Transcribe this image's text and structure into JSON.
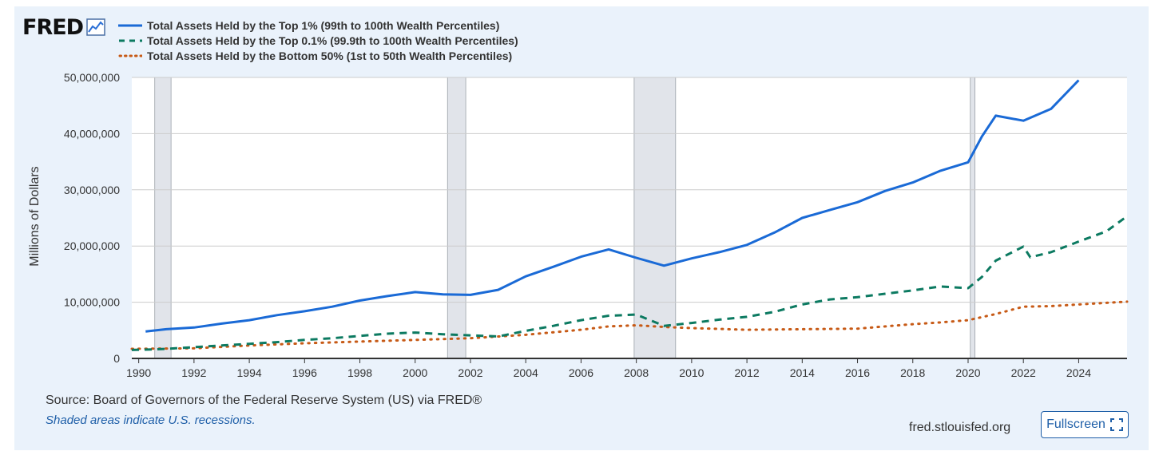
{
  "branding": {
    "logo_text": "FRED",
    "logo_icon": "line-chart-icon"
  },
  "footer": {
    "source": "Source: Board of Governors of the Federal Reserve System (US) via FRED®",
    "note": "Shaded areas indicate U.S. recessions.",
    "site": "fred.stlouisfed.org",
    "fullscreen_label": "Fullscreen",
    "fullscreen_icon": "expand-icon"
  },
  "colors": {
    "top1": "#1a6ad6",
    "top01": "#0c7a61",
    "bottom50": "#c75a16",
    "recession": "#e1e4ea",
    "background": "#eaf2fb"
  },
  "chart_data": {
    "type": "line",
    "ylabel": "Millions of Dollars",
    "ylim": [
      0,
      50000000
    ],
    "yticks": [
      0,
      10000000,
      20000000,
      30000000,
      40000000,
      50000000
    ],
    "ytick_labels": [
      "0",
      "10,000,000",
      "20,000,000",
      "30,000,000",
      "40,000,000",
      "50,000,000"
    ],
    "xlim": [
      1989.75,
      2025.75
    ],
    "xticks": [
      1990,
      1992,
      1994,
      1996,
      1998,
      2000,
      2002,
      2004,
      2006,
      2008,
      2010,
      2012,
      2014,
      2016,
      2018,
      2020,
      2022,
      2024
    ],
    "xtick_labels": [
      "1990",
      "1992",
      "1994",
      "1996",
      "1998",
      "2000",
      "2002",
      "2004",
      "2006",
      "2008",
      "2010",
      "2012",
      "2014",
      "2016",
      "2018",
      "2020",
      "2022",
      "2024"
    ],
    "recessions": [
      [
        1990.58,
        1991.17
      ],
      [
        2001.17,
        2001.83
      ],
      [
        2007.92,
        2009.42
      ],
      [
        2020.08,
        2020.25
      ]
    ],
    "series": [
      {
        "name": "Total Assets Held by the Top 1% (99th to 100th Wealth Percentiles)",
        "style": "solid",
        "x": [
          1990.25,
          1991,
          1992,
          1993,
          1994,
          1995,
          1996,
          1997,
          1998,
          1999,
          2000,
          2001,
          2002,
          2003,
          2004,
          2005,
          2006,
          2007,
          2008,
          2009,
          2010,
          2011,
          2012,
          2013,
          2014,
          2015,
          2016,
          2017,
          2018,
          2019,
          2020,
          2020.5,
          2021,
          2022,
          2023,
          2024
        ],
        "values": [
          4800000,
          5200000,
          5500000,
          6200000,
          6800000,
          7700000,
          8400000,
          9200000,
          10300000,
          11100000,
          11800000,
          11400000,
          11300000,
          12200000,
          14600000,
          16300000,
          18100000,
          19400000,
          17900000,
          16500000,
          17800000,
          18900000,
          20200000,
          22400000,
          25000000,
          26400000,
          27800000,
          29800000,
          31300000,
          33400000,
          34900000,
          39500000,
          43200000,
          42300000,
          44400000,
          49500000
        ]
      },
      {
        "name": "Total Assets Held by the Top 0.1% (99.9th to 100th Wealth Percentiles)",
        "style": "dashed",
        "x": [
          1989.75,
          1990.5,
          1991,
          1992,
          1993,
          1994,
          1995,
          1996,
          1997,
          1998,
          1999,
          2000,
          2001,
          2002,
          2003,
          2004,
          2005,
          2006,
          2007,
          2008,
          2009,
          2010,
          2011,
          2012,
          2013,
          2014,
          2015,
          2016,
          2017,
          2018,
          2019,
          2020,
          2020.5,
          2021,
          2022,
          2022.25,
          2023,
          2024,
          2025,
          2025.75
        ],
        "values": [
          1500000,
          1600000,
          1700000,
          2000000,
          2300000,
          2600000,
          2900000,
          3300000,
          3600000,
          4000000,
          4400000,
          4600000,
          4300000,
          4100000,
          3900000,
          4900000,
          5800000,
          6800000,
          7600000,
          7800000,
          5800000,
          6300000,
          6900000,
          7400000,
          8300000,
          9600000,
          10500000,
          10900000,
          11500000,
          12100000,
          12800000,
          12500000,
          14500000,
          17400000,
          19900000,
          18000000,
          18900000,
          20800000,
          22600000,
          25300000
        ]
      },
      {
        "name": "Total Assets Held by the Bottom 50% (1st to 50th Wealth Percentiles)",
        "style": "dotted",
        "x": [
          1989.75,
          1992,
          1994,
          1996,
          1998,
          2000,
          2002,
          2004,
          2006,
          2007,
          2008,
          2009,
          2010,
          2012,
          2014,
          2016,
          2017,
          2018,
          2019,
          2020,
          2021,
          2022,
          2023,
          2024,
          2025.75
        ],
        "values": [
          1700000,
          1800000,
          2300000,
          2700000,
          3000000,
          3300000,
          3600000,
          4200000,
          5100000,
          5700000,
          5900000,
          5600000,
          5400000,
          5100000,
          5200000,
          5300000,
          5700000,
          6100000,
          6400000,
          6800000,
          7900000,
          9200000,
          9300000,
          9600000,
          10100000
        ]
      }
    ]
  }
}
